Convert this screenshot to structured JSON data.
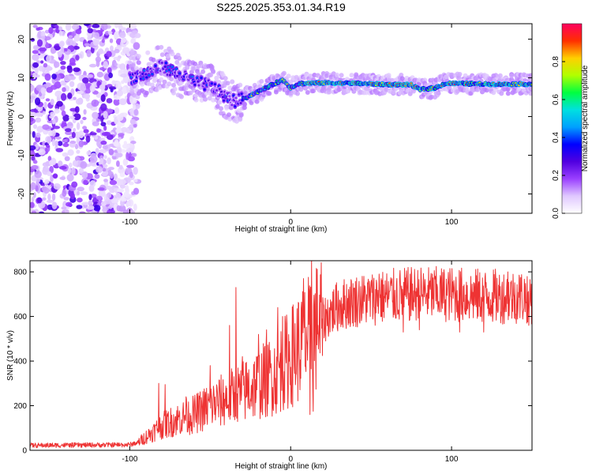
{
  "title": "S225.2025.353.01.34.R19",
  "chart_data": [
    {
      "type": "heatmap",
      "name": "spectrogram",
      "xlabel": "Height of straight line (km)",
      "ylabel": "Frequency (Hz)",
      "xlim": [
        -162,
        150
      ],
      "ylim": [
        -25,
        24
      ],
      "xticks": [
        -100,
        0,
        100
      ],
      "xtick_labels": [
        "-100",
        "0",
        "100"
      ],
      "yticks": [
        -20,
        -10,
        0,
        10,
        20
      ],
      "ytick_labels": [
        "-20",
        "-10",
        "0",
        "10",
        "20"
      ],
      "ridge": {
        "x": [
          -100,
          -90,
          -80,
          -70,
          -60,
          -50,
          -40,
          -35,
          -30,
          -20,
          -10,
          -5,
          0,
          5,
          10,
          20,
          40,
          60,
          75,
          80,
          85,
          90,
          95,
          100,
          120,
          140,
          150
        ],
        "y": [
          10,
          11,
          13,
          11,
          9,
          8,
          5,
          4,
          4.5,
          6.5,
          8.5,
          9.5,
          7.5,
          8.5,
          8.6,
          8.7,
          8.6,
          8.3,
          8.2,
          7,
          7.2,
          7.4,
          8.4,
          8.6,
          8.4,
          8.4,
          8.4
        ]
      },
      "noise_region_x": [
        -162,
        -95
      ],
      "colorbar": {
        "label": "Normalized spectral amplitude",
        "range": [
          0,
          1
        ],
        "ticks": [
          0.0,
          0.2,
          0.4,
          0.6,
          0.8
        ],
        "tick_labels": [
          "0.0",
          "0.2",
          "0.4",
          "0.6",
          "0.8"
        ],
        "colors": [
          "#ffffff",
          "#e0c8ff",
          "#9a40ff",
          "#5000e0",
          "#0000ff",
          "#00a0ff",
          "#00e0e0",
          "#00ff40",
          "#b0ff00",
          "#ffd000",
          "#ff3000",
          "#ff0060"
        ]
      }
    },
    {
      "type": "line",
      "name": "snr",
      "xlabel": "Height of straight line (km)",
      "ylabel": "SNR (10 * v/v)",
      "xlim": [
        -162,
        150
      ],
      "ylim": [
        0,
        850
      ],
      "xticks": [
        -100,
        0,
        100
      ],
      "xtick_labels": [
        "-100",
        "0",
        "100"
      ],
      "yticks": [
        0,
        200,
        400,
        600,
        800
      ],
      "ytick_labels": [
        "0",
        "200",
        "400",
        "600",
        "800"
      ],
      "color": "#ee3333",
      "envelope": {
        "x": [
          -162,
          -100,
          -95,
          -90,
          -80,
          -70,
          -60,
          -50,
          -40,
          -30,
          -20,
          -15,
          -10,
          -5,
          0,
          5,
          10,
          15,
          20,
          25,
          30,
          40,
          60,
          80,
          100,
          120,
          150
        ],
        "y": [
          22,
          25,
          35,
          60,
          110,
          140,
          160,
          200,
          230,
          260,
          300,
          320,
          340,
          380,
          420,
          460,
          500,
          540,
          580,
          620,
          650,
          670,
          690,
          700,
          700,
          690,
          690
        ]
      },
      "spikes": [
        {
          "x": -82,
          "y": 300
        },
        {
          "x": -78,
          "y": 295
        },
        {
          "x": -65,
          "y": 240
        },
        {
          "x": -50,
          "y": 380
        },
        {
          "x": -38,
          "y": 560
        },
        {
          "x": -34,
          "y": 730
        },
        {
          "x": -30,
          "y": 420
        },
        {
          "x": -20,
          "y": 520
        },
        {
          "x": -15,
          "y": 540
        },
        {
          "x": -8,
          "y": 640
        },
        {
          "x": -5,
          "y": 600
        },
        {
          "x": 8,
          "y": 770
        },
        {
          "x": 13,
          "y": 850
        },
        {
          "x": 17,
          "y": 560
        },
        {
          "x": 55,
          "y": 790
        },
        {
          "x": 90,
          "y": 780
        },
        {
          "x": 135,
          "y": 800
        }
      ],
      "dips": [
        {
          "x": 12,
          "y": 160
        },
        {
          "x": 14,
          "y": 175
        },
        {
          "x": 70,
          "y": 530
        },
        {
          "x": 80,
          "y": 540
        },
        {
          "x": 105,
          "y": 530
        },
        {
          "x": 120,
          "y": 530
        },
        {
          "x": 148,
          "y": 560
        }
      ]
    }
  ]
}
